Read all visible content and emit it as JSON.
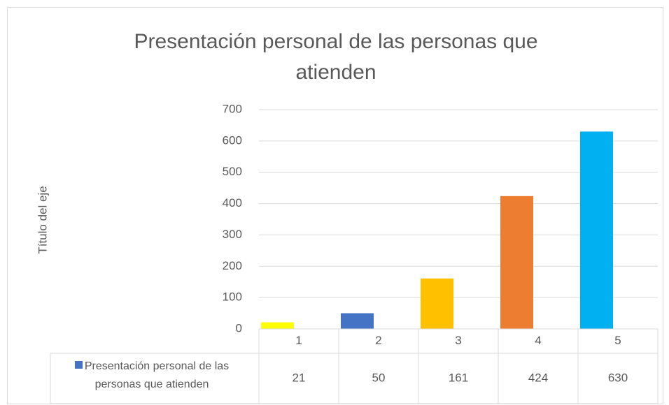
{
  "chart_data": {
    "type": "bar",
    "title": "Presentación personal de las personas que atienden",
    "y_axis_label": "Título del eje",
    "categories": [
      "1",
      "2",
      "3",
      "4",
      "5"
    ],
    "series": [
      {
        "name": "Presentación personal de las personas que atienden",
        "color": "#4472C4",
        "values": [
          21,
          50,
          161,
          424,
          630
        ],
        "point_colors": [
          "#FFFF00",
          "#4472C4",
          "#FFC000",
          "#ED7D31",
          "#00B0F0"
        ]
      }
    ],
    "ylim": [
      0,
      700
    ],
    "yticks": [
      0,
      100,
      200,
      300,
      400,
      500,
      600,
      700
    ],
    "grid": true,
    "data_table": true
  }
}
